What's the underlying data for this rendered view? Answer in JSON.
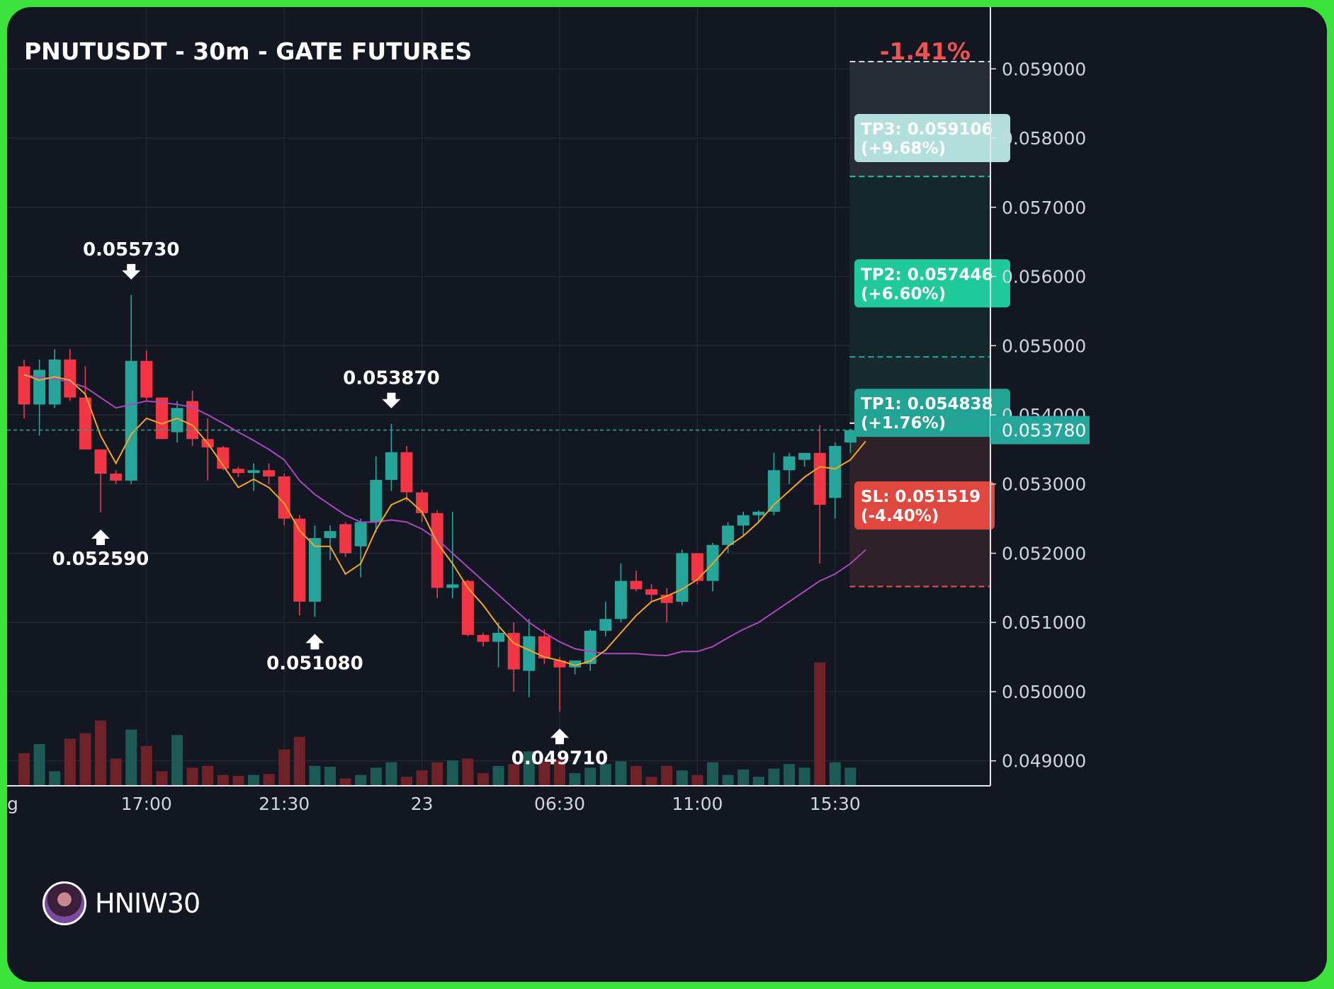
{
  "title": "PNUTUSDT - 30m - GATE FUTURES",
  "change_pct": "-1.41%",
  "watermark": "HNIW30",
  "colors": {
    "up": "#26a69a",
    "down": "#f23645",
    "ema_fast": "#f6a623",
    "ema_slow": "#ab47bc",
    "change": "#ef5350"
  },
  "chart_data": {
    "type": "candlestick",
    "interval": "30m",
    "ylim": [
      0.04862,
      0.05958
    ],
    "y_ticks": [
      0.049,
      0.05,
      0.051,
      0.052,
      0.053,
      0.054,
      0.055,
      0.056,
      0.057,
      0.058,
      0.059
    ],
    "y_tick_labels": [
      "0.049000",
      "0.050000",
      "0.051000",
      "0.052000",
      "0.053000",
      "0.054000",
      "0.055000",
      "0.056000",
      "0.057000",
      "0.058000",
      "0.059000"
    ],
    "x_tick_labels": [
      {
        "idx": 8,
        "label": "17:00"
      },
      {
        "idx": 17,
        "label": "21:30"
      },
      {
        "idx": 26,
        "label": "23"
      },
      {
        "idx": 35,
        "label": "06:30"
      },
      {
        "idx": 44,
        "label": "11:00"
      },
      {
        "idx": 53,
        "label": "15:30"
      }
    ],
    "x_edge_label": "g",
    "candles": [
      [
        0.0547,
        0.0548,
        0.05395,
        0.05415,
        180
      ],
      [
        0.05415,
        0.0548,
        0.0537,
        0.05465,
        230
      ],
      [
        0.05415,
        0.05495,
        0.0541,
        0.0548,
        80
      ],
      [
        0.0548,
        0.05495,
        0.0542,
        0.05425,
        260
      ],
      [
        0.05425,
        0.0547,
        0.0536,
        0.0535,
        290
      ],
      [
        0.0535,
        0.0535,
        0.05259,
        0.05315,
        360
      ],
      [
        0.05315,
        0.0532,
        0.053,
        0.05305,
        150
      ],
      [
        0.05305,
        0.05573,
        0.053,
        0.05478,
        310
      ],
      [
        0.05478,
        0.05493,
        0.0542,
        0.05425,
        220
      ],
      [
        0.05425,
        0.05425,
        0.0537,
        0.05365,
        80
      ],
      [
        0.05375,
        0.0542,
        0.0536,
        0.0541,
        280
      ],
      [
        0.0542,
        0.05435,
        0.05355,
        0.05365,
        100
      ],
      [
        0.05365,
        0.05395,
        0.05305,
        0.05353,
        110
      ],
      [
        0.05353,
        0.05355,
        0.0532,
        0.05322,
        60
      ],
      [
        0.05322,
        0.05325,
        0.0531,
        0.05316,
        55
      ],
      [
        0.05316,
        0.0533,
        0.0529,
        0.0532,
        60
      ],
      [
        0.0532,
        0.0533,
        0.053,
        0.05311,
        65
      ],
      [
        0.05311,
        0.05315,
        0.0524,
        0.0525,
        200
      ],
      [
        0.0525,
        0.05255,
        0.0511,
        0.0513,
        270
      ],
      [
        0.0513,
        0.0524,
        0.05108,
        0.05222,
        110
      ],
      [
        0.05222,
        0.0524,
        0.0519,
        0.05232,
        105
      ],
      [
        0.05242,
        0.05245,
        0.05195,
        0.052,
        40
      ],
      [
        0.0521,
        0.0525,
        0.05165,
        0.05245,
        60
      ],
      [
        0.05245,
        0.0534,
        0.0523,
        0.05306,
        100
      ],
      [
        0.05306,
        0.05387,
        0.0529,
        0.05346,
        130
      ],
      [
        0.05346,
        0.05355,
        0.05275,
        0.05288,
        50
      ],
      [
        0.05288,
        0.05292,
        0.05245,
        0.05258,
        85
      ],
      [
        0.05258,
        0.05262,
        0.05135,
        0.0515,
        130
      ],
      [
        0.0515,
        0.0526,
        0.05135,
        0.05155,
        140
      ],
      [
        0.0516,
        0.05162,
        0.0508,
        0.05082,
        150
      ],
      [
        0.05082,
        0.05085,
        0.05065,
        0.05072,
        70
      ],
      [
        0.05072,
        0.051,
        0.05035,
        0.05085,
        110
      ],
      [
        0.05085,
        0.051,
        0.05,
        0.05032,
        120
      ],
      [
        0.0503,
        0.05105,
        0.04992,
        0.0508,
        190
      ],
      [
        0.0508,
        0.0509,
        0.0504,
        0.05048,
        135
      ],
      [
        0.05045,
        0.0505,
        0.04971,
        0.05035,
        145
      ],
      [
        0.05035,
        0.05045,
        0.05025,
        0.05045,
        70
      ],
      [
        0.0504,
        0.0509,
        0.0503,
        0.05088,
        100
      ],
      [
        0.05088,
        0.0513,
        0.0508,
        0.05105,
        120
      ],
      [
        0.05105,
        0.05185,
        0.051,
        0.0516,
        135
      ],
      [
        0.0516,
        0.05175,
        0.05145,
        0.05148,
        110
      ],
      [
        0.05148,
        0.05155,
        0.0513,
        0.0514,
        50
      ],
      [
        0.0514,
        0.0515,
        0.051,
        0.05128,
        110
      ],
      [
        0.0513,
        0.05205,
        0.05125,
        0.052,
        85
      ],
      [
        0.052,
        0.052,
        0.05155,
        0.0516,
        60
      ],
      [
        0.0516,
        0.05215,
        0.05145,
        0.05212,
        130
      ],
      [
        0.05212,
        0.05245,
        0.052,
        0.0524,
        60
      ],
      [
        0.0524,
        0.0526,
        0.05225,
        0.05255,
        90
      ],
      [
        0.05255,
        0.05262,
        0.05245,
        0.0526,
        50
      ],
      [
        0.0526,
        0.05345,
        0.05255,
        0.0532,
        95
      ],
      [
        0.0532,
        0.05345,
        0.053,
        0.0534,
        120
      ],
      [
        0.05335,
        0.05345,
        0.05325,
        0.05345,
        100
      ],
      [
        0.05345,
        0.05385,
        0.05185,
        0.0527,
        680
      ],
      [
        0.0528,
        0.0536,
        0.0525,
        0.05355,
        130
      ],
      [
        0.0536,
        0.0538,
        0.05345,
        0.05378,
        100
      ]
    ],
    "ema_fast": [
      0.05458,
      0.0545,
      0.05455,
      0.0545,
      0.0543,
      0.0537,
      0.0533,
      0.05372,
      0.05395,
      0.05387,
      0.05395,
      0.05385,
      0.05359,
      0.05327,
      0.05295,
      0.05307,
      0.05295,
      0.05272,
      0.05233,
      0.0521,
      0.0521,
      0.0517,
      0.05185,
      0.05234,
      0.0527,
      0.0528,
      0.0526,
      0.05215,
      0.05185,
      0.0515,
      0.05125,
      0.05095,
      0.0507,
      0.0506,
      0.0505,
      0.05045,
      0.05038,
      0.05044,
      0.0506,
      0.05085,
      0.0511,
      0.0513,
      0.05138,
      0.05148,
      0.05162,
      0.05185,
      0.0521,
      0.05225,
      0.05245,
      0.0527,
      0.0529,
      0.0531,
      0.05325,
      0.05322,
      0.05335,
      0.05362
    ],
    "ema_slow": [
      0.05458,
      0.05454,
      0.05452,
      0.05447,
      0.0544,
      0.05425,
      0.0541,
      0.05415,
      0.0542,
      0.05418,
      0.05415,
      0.05411,
      0.054,
      0.05388,
      0.05375,
      0.05363,
      0.0535,
      0.05335,
      0.05305,
      0.05285,
      0.0527,
      0.05255,
      0.05245,
      0.05245,
      0.05248,
      0.05245,
      0.05235,
      0.0522,
      0.052,
      0.0518,
      0.0516,
      0.0514,
      0.0512,
      0.051,
      0.05085,
      0.05072,
      0.05062,
      0.05058,
      0.05055,
      0.05055,
      0.05055,
      0.05053,
      0.05052,
      0.05058,
      0.05058,
      0.05065,
      0.05078,
      0.0509,
      0.051,
      0.05115,
      0.0513,
      0.05145,
      0.0516,
      0.0517,
      0.05185,
      0.05205
    ],
    "volume_max": 800,
    "swing_labels": [
      {
        "idx": 7,
        "price": 0.05573,
        "label": "0.055730",
        "dir": "high"
      },
      {
        "idx": 5,
        "price": 0.05259,
        "label": "0.052590",
        "dir": "low"
      },
      {
        "idx": 19,
        "price": 0.05108,
        "label": "0.051080",
        "dir": "low"
      },
      {
        "idx": 24,
        "price": 0.05387,
        "label": "0.053870",
        "dir": "high"
      },
      {
        "idx": 35,
        "price": 0.04971,
        "label": "0.049710",
        "dir": "low"
      }
    ],
    "levels": [
      {
        "name": "TP3",
        "price": 0.059106,
        "label": "TP3: 0.059106",
        "sub": "(+9.68%)",
        "color": "#b2dfdb",
        "line": "#cfd8dc"
      },
      {
        "name": "TP2",
        "price": 0.057446,
        "label": "TP2: 0.057446",
        "sub": "(+6.60%)",
        "color": "#1fc99a",
        "line": "#26c6a0"
      },
      {
        "name": "TP1",
        "price": 0.054838,
        "label": "TP1: 0.054838",
        "sub": "(+1.76%)",
        "color": "#22a393",
        "line": "#26a69a"
      },
      {
        "name": "SL",
        "price": 0.051519,
        "label": "SL: 0.051519",
        "sub": "(-4.40%)",
        "color": "#e0483f",
        "line": "#ef5350"
      }
    ],
    "entry_price": 0.05388,
    "current_price": 0.05378,
    "current_price_label": "0.053780"
  }
}
